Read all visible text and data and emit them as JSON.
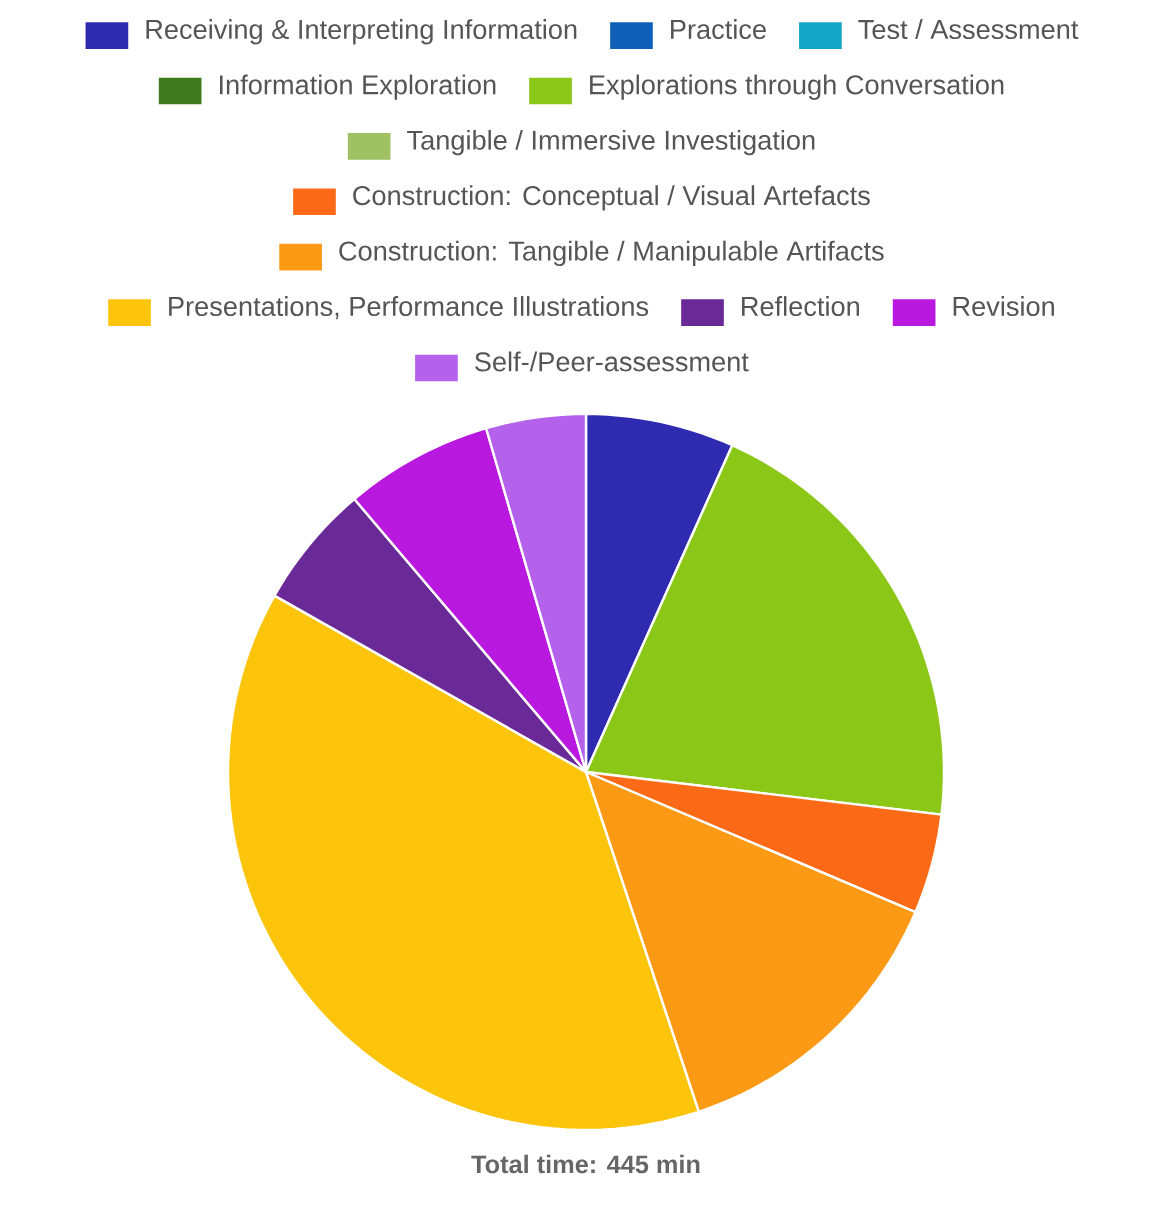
{
  "chart_data": {
    "type": "pie",
    "categories": [
      "Receiving & Interpreting Information",
      "Practice",
      "Test / Assessment",
      "Information Exploration",
      "Explorations through Conversation",
      "Tangible / Immersive Investigation",
      "Construction: Conceptual / Visual Artefacts",
      "Construction: Tangible / Manipulable Artifacts",
      "Presentations, Performance Illustrations",
      "Reflection",
      "Revision",
      "Self-/Peer-assessment"
    ],
    "values": [
      6.7,
      0,
      0,
      0,
      20.2,
      0,
      4.5,
      13.5,
      38.3,
      5.6,
      6.7,
      4.5
    ],
    "colors": [
      "#2e2bb0",
      "#0f5fb8",
      "#14a5c8",
      "#3f7a1e",
      "#8bc717",
      "#a0c064",
      "#fc6a17",
      "#fc9a16",
      "#fdc40c",
      "#692a98",
      "#b918de",
      "#b462ec"
    ],
    "legend": "top",
    "annotations": [
      "Total time: 445 min"
    ]
  }
}
